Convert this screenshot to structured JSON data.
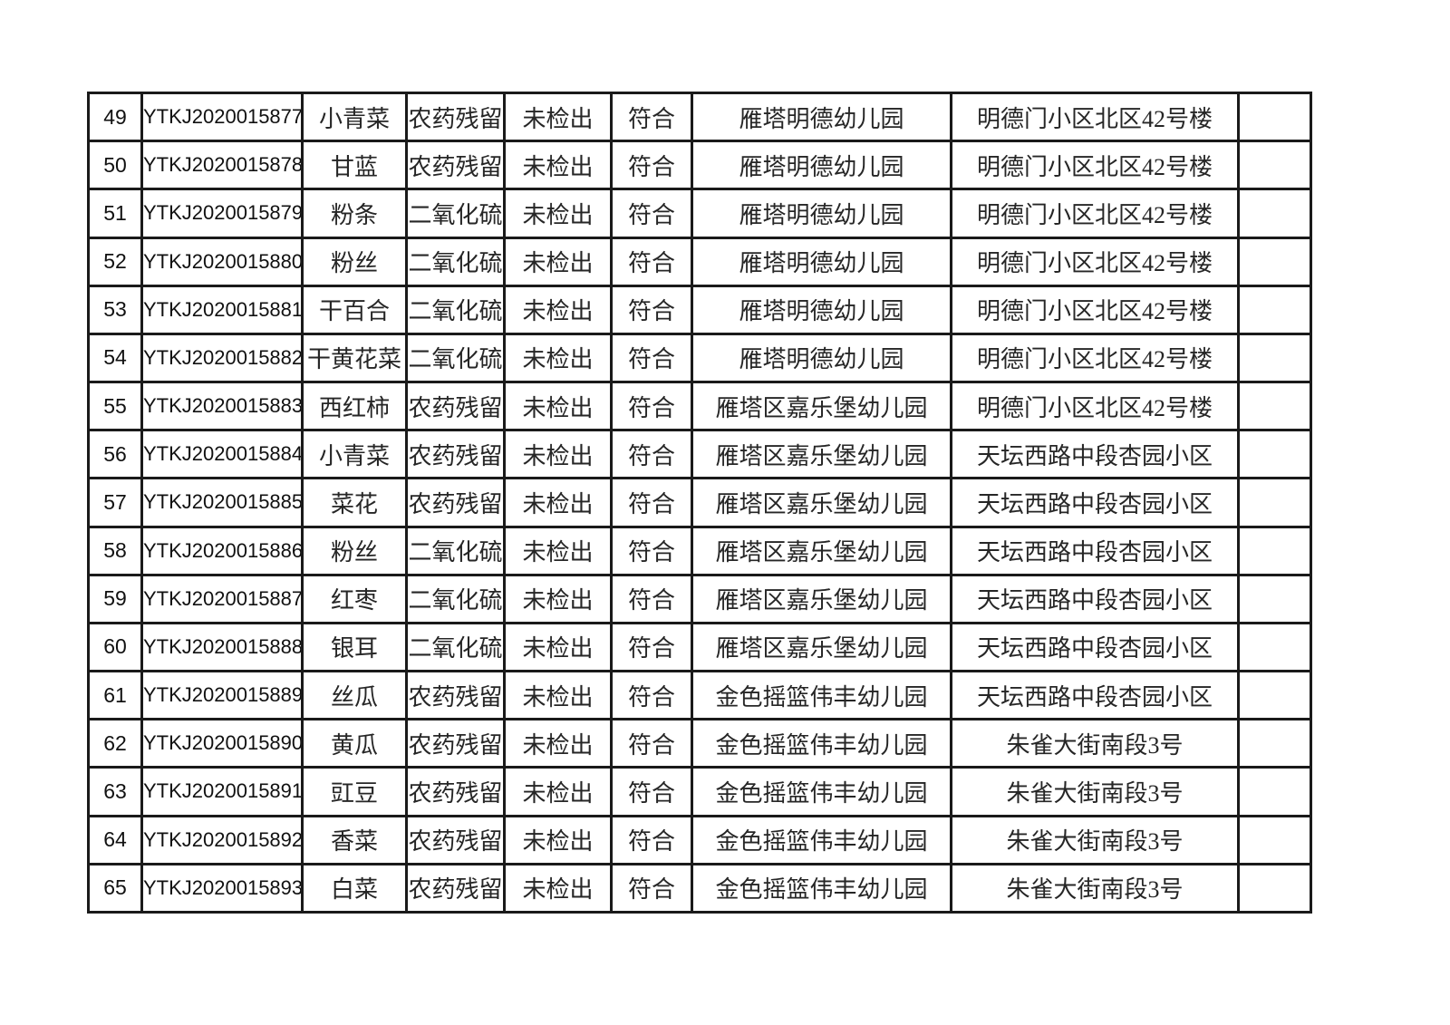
{
  "page": {
    "background_color": "#ffffff",
    "text_color": "#262626",
    "border_color": "#1a1a1a"
  },
  "table": {
    "description": "inspection-results-table-rows-49-65",
    "columns": [
      {
        "key": "no",
        "name": "row-number"
      },
      {
        "key": "id",
        "name": "sample-id"
      },
      {
        "key": "sample",
        "name": "sample-name"
      },
      {
        "key": "item",
        "name": "test-item"
      },
      {
        "key": "result",
        "name": "test-result"
      },
      {
        "key": "conclusion",
        "name": "conclusion"
      },
      {
        "key": "org",
        "name": "sampled-organization"
      },
      {
        "key": "address",
        "name": "address"
      },
      {
        "key": "note",
        "name": "remark"
      }
    ],
    "rows": [
      {
        "no": "49",
        "id": "YTKJ2020015877",
        "sample": "小青菜",
        "item": "农药残留",
        "result": "未检出",
        "conclusion": "符合",
        "org": "雁塔明德幼儿园",
        "address": "明德门小区北区42号楼",
        "note": ""
      },
      {
        "no": "50",
        "id": "YTKJ2020015878",
        "sample": "甘蓝",
        "item": "农药残留",
        "result": "未检出",
        "conclusion": "符合",
        "org": "雁塔明德幼儿园",
        "address": "明德门小区北区42号楼",
        "note": ""
      },
      {
        "no": "51",
        "id": "YTKJ2020015879",
        "sample": "粉条",
        "item": "二氧化硫",
        "result": "未检出",
        "conclusion": "符合",
        "org": "雁塔明德幼儿园",
        "address": "明德门小区北区42号楼",
        "note": ""
      },
      {
        "no": "52",
        "id": "YTKJ2020015880",
        "sample": "粉丝",
        "item": "二氧化硫",
        "result": "未检出",
        "conclusion": "符合",
        "org": "雁塔明德幼儿园",
        "address": "明德门小区北区42号楼",
        "note": ""
      },
      {
        "no": "53",
        "id": "YTKJ2020015881",
        "sample": "干百合",
        "item": "二氧化硫",
        "result": "未检出",
        "conclusion": "符合",
        "org": "雁塔明德幼儿园",
        "address": "明德门小区北区42号楼",
        "note": ""
      },
      {
        "no": "54",
        "id": "YTKJ2020015882",
        "sample": "干黄花菜",
        "item": "二氧化硫",
        "result": "未检出",
        "conclusion": "符合",
        "org": "雁塔明德幼儿园",
        "address": "明德门小区北区42号楼",
        "note": ""
      },
      {
        "no": "55",
        "id": "YTKJ2020015883",
        "sample": "西红柿",
        "item": "农药残留",
        "result": "未检出",
        "conclusion": "符合",
        "org": "雁塔区嘉乐堡幼儿园",
        "address": "明德门小区北区42号楼",
        "note": ""
      },
      {
        "no": "56",
        "id": "YTKJ2020015884",
        "sample": "小青菜",
        "item": "农药残留",
        "result": "未检出",
        "conclusion": "符合",
        "org": "雁塔区嘉乐堡幼儿园",
        "address": "天坛西路中段杏园小区",
        "note": ""
      },
      {
        "no": "57",
        "id": "YTKJ2020015885",
        "sample": "菜花",
        "item": "农药残留",
        "result": "未检出",
        "conclusion": "符合",
        "org": "雁塔区嘉乐堡幼儿园",
        "address": "天坛西路中段杏园小区",
        "note": ""
      },
      {
        "no": "58",
        "id": "YTKJ2020015886",
        "sample": "粉丝",
        "item": "二氧化硫",
        "result": "未检出",
        "conclusion": "符合",
        "org": "雁塔区嘉乐堡幼儿园",
        "address": "天坛西路中段杏园小区",
        "note": ""
      },
      {
        "no": "59",
        "id": "YTKJ2020015887",
        "sample": "红枣",
        "item": "二氧化硫",
        "result": "未检出",
        "conclusion": "符合",
        "org": "雁塔区嘉乐堡幼儿园",
        "address": "天坛西路中段杏园小区",
        "note": ""
      },
      {
        "no": "60",
        "id": "YTKJ2020015888",
        "sample": "银耳",
        "item": "二氧化硫",
        "result": "未检出",
        "conclusion": "符合",
        "org": "雁塔区嘉乐堡幼儿园",
        "address": "天坛西路中段杏园小区",
        "note": ""
      },
      {
        "no": "61",
        "id": "YTKJ2020015889",
        "sample": "丝瓜",
        "item": "农药残留",
        "result": "未检出",
        "conclusion": "符合",
        "org": "金色摇篮伟丰幼儿园",
        "address": "天坛西路中段杏园小区",
        "note": ""
      },
      {
        "no": "62",
        "id": "YTKJ2020015890",
        "sample": "黄瓜",
        "item": "农药残留",
        "result": "未检出",
        "conclusion": "符合",
        "org": "金色摇篮伟丰幼儿园",
        "address": "朱雀大街南段3号",
        "note": ""
      },
      {
        "no": "63",
        "id": "YTKJ2020015891",
        "sample": "豇豆",
        "item": "农药残留",
        "result": "未检出",
        "conclusion": "符合",
        "org": "金色摇篮伟丰幼儿园",
        "address": "朱雀大街南段3号",
        "note": ""
      },
      {
        "no": "64",
        "id": "YTKJ2020015892",
        "sample": "香菜",
        "item": "农药残留",
        "result": "未检出",
        "conclusion": "符合",
        "org": "金色摇篮伟丰幼儿园",
        "address": "朱雀大街南段3号",
        "note": ""
      },
      {
        "no": "65",
        "id": "YTKJ2020015893",
        "sample": "白菜",
        "item": "农药残留",
        "result": "未检出",
        "conclusion": "符合",
        "org": "金色摇篮伟丰幼儿园",
        "address": "朱雀大街南段3号",
        "note": ""
      }
    ]
  }
}
